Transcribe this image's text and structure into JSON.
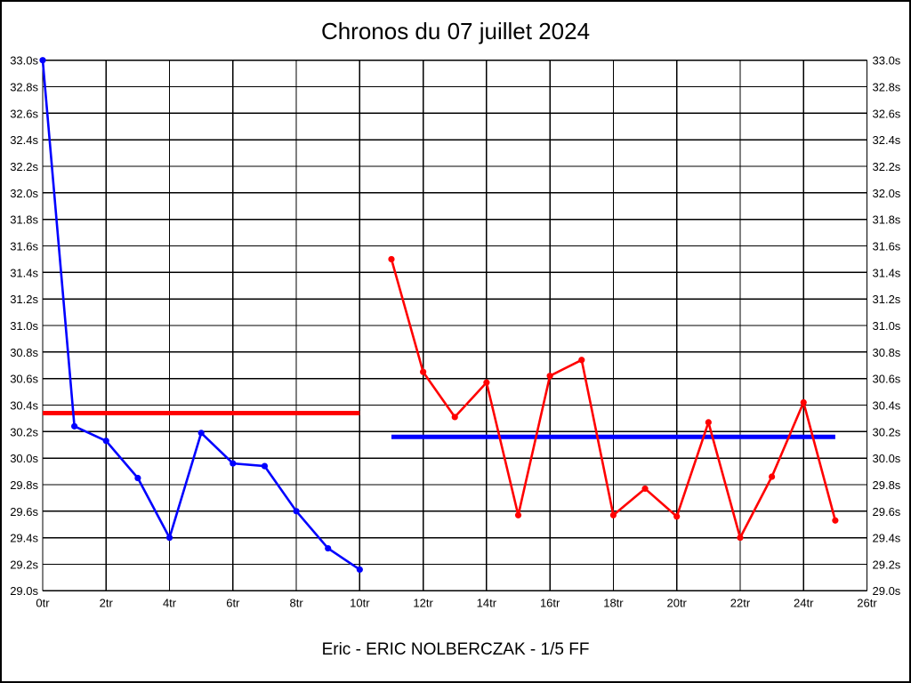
{
  "window": {
    "background_color": "#ffffff",
    "border_color": "#000000"
  },
  "chart_data": {
    "type": "line",
    "title": "Chronos du 07 juillet 2024",
    "caption": "Eric - ERIC NOLBERCZAK - 1/5 FF",
    "xlabel": "",
    "ylabel": "",
    "x_unit": "tr",
    "y_unit": "s",
    "xlim": [
      0,
      26
    ],
    "ylim": [
      29.0,
      33.0
    ],
    "x_tick_step": 2,
    "y_tick_step": 0.2,
    "grid": true,
    "y_labels_both_sides": true,
    "x_tick_labels": [
      "0tr",
      "2tr",
      "4tr",
      "6tr",
      "8tr",
      "10tr",
      "12tr",
      "14tr",
      "16tr",
      "18tr",
      "20tr",
      "22tr",
      "24tr",
      "26tr"
    ],
    "y_tick_labels_top_to_bottom": [
      "33.0s",
      "32.8s",
      "32.6s",
      "32.4s",
      "32.2s",
      "32.0s",
      "31.8s",
      "31.6s",
      "31.4s",
      "31.2s",
      "31.0s",
      "30.8s",
      "30.6s",
      "30.4s",
      "30.2s",
      "30.0s",
      "29.8s",
      "29.6s",
      "29.4s",
      "29.2s",
      "29.0s"
    ],
    "series": [
      {
        "name": "session-1-blue",
        "color": "#0000ff",
        "marker": "circle",
        "x": [
          0,
          1,
          2,
          3,
          4,
          5,
          6,
          7,
          8,
          9,
          10
        ],
        "values": [
          33.0,
          30.24,
          30.13,
          29.85,
          29.4,
          30.19,
          29.96,
          29.94,
          29.6,
          29.32,
          29.16
        ]
      },
      {
        "name": "session-2-red",
        "color": "#ff0000",
        "marker": "circle",
        "x": [
          11,
          12,
          13,
          14,
          15,
          16,
          17,
          18,
          19,
          20,
          21,
          22,
          23,
          24,
          25
        ],
        "values": [
          31.5,
          30.65,
          30.31,
          30.57,
          29.57,
          30.62,
          30.74,
          29.57,
          29.77,
          29.56,
          30.27,
          29.4,
          29.86,
          30.42,
          29.53
        ]
      }
    ],
    "reference_lines": [
      {
        "name": "red-average-line",
        "color": "#ff0000",
        "value": 30.34,
        "x_start": 0,
        "x_end": 10
      },
      {
        "name": "blue-average-line",
        "color": "#0000ff",
        "value": 30.16,
        "x_start": 11,
        "x_end": 25
      }
    ]
  }
}
